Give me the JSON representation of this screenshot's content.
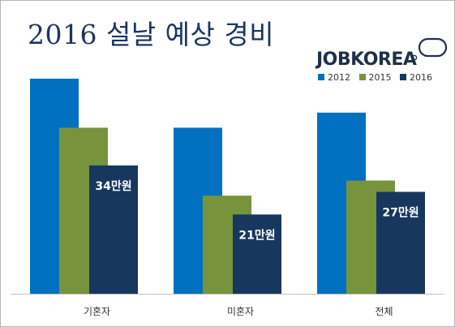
{
  "title": "2016 설날 예상 경비",
  "brand": {
    "name": "JOBKOREA",
    "logo_icon": "jobkorea-oval-logo-icon"
  },
  "colors": {
    "2012": "#0070c0",
    "2015": "#77933c",
    "2016": "#17375e",
    "title": "#1b3560"
  },
  "chart_data": {
    "type": "bar",
    "title": "2016 설날 예상 경비",
    "xlabel": "",
    "ylabel": "",
    "ylim": [
      0,
      60
    ],
    "grid": false,
    "legend_position": "top-right",
    "categories": [
      "기혼자",
      "미혼자",
      "전체"
    ],
    "series": [
      {
        "name": "2012",
        "values": [
          57,
          44,
          48
        ],
        "labels": [
          "",
          "",
          ""
        ]
      },
      {
        "name": "2015",
        "values": [
          44,
          26,
          30
        ],
        "labels": [
          "",
          "",
          ""
        ]
      },
      {
        "name": "2016",
        "values": [
          34,
          21,
          27
        ],
        "labels": [
          "34만원",
          "21만원",
          "27만원"
        ]
      }
    ]
  }
}
